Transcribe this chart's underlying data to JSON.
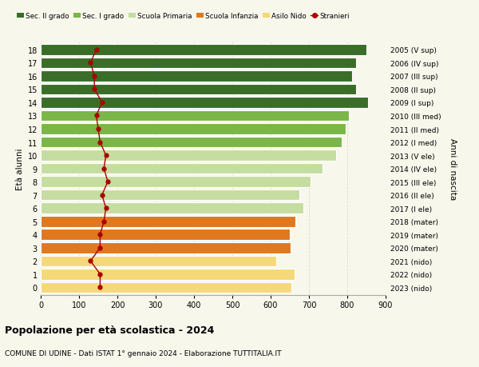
{
  "ages": [
    18,
    17,
    16,
    15,
    14,
    13,
    12,
    11,
    10,
    9,
    8,
    7,
    6,
    5,
    4,
    3,
    2,
    1,
    0
  ],
  "right_labels": [
    "2005 (V sup)",
    "2006 (IV sup)",
    "2007 (III sup)",
    "2008 (II sup)",
    "2009 (I sup)",
    "2010 (III med)",
    "2011 (II med)",
    "2012 (I med)",
    "2013 (V ele)",
    "2014 (IV ele)",
    "2015 (III ele)",
    "2016 (II ele)",
    "2017 (I ele)",
    "2018 (mater)",
    "2019 (mater)",
    "2020 (mater)",
    "2021 (nido)",
    "2022 (nido)",
    "2023 (nido)"
  ],
  "bar_values": [
    851,
    822,
    812,
    822,
    855,
    805,
    795,
    785,
    770,
    735,
    705,
    675,
    685,
    665,
    650,
    653,
    615,
    662,
    655
  ],
  "stranieri": [
    145,
    130,
    140,
    140,
    160,
    145,
    150,
    155,
    170,
    165,
    175,
    160,
    170,
    165,
    155,
    155,
    130,
    155,
    155
  ],
  "bar_colors": [
    "#3a6e28",
    "#3a6e28",
    "#3a6e28",
    "#3a6e28",
    "#3a6e28",
    "#7ab648",
    "#7ab648",
    "#7ab648",
    "#c5dda0",
    "#c5dda0",
    "#c5dda0",
    "#c5dda0",
    "#c5dda0",
    "#e07820",
    "#e07820",
    "#e07820",
    "#f5d878",
    "#f5d878",
    "#f5d878"
  ],
  "legend_labels": [
    "Sec. II grado",
    "Sec. I grado",
    "Scuola Primaria",
    "Scuola Infanzia",
    "Asilo Nido",
    "Stranieri"
  ],
  "legend_colors": [
    "#3a6e28",
    "#7ab648",
    "#c5dda0",
    "#e07820",
    "#f5d878",
    "#aa0000"
  ],
  "title_bold": "Popolazione per età scolastica - 2024",
  "subtitle": "COMUNE DI UDINE - Dati ISTAT 1° gennaio 2024 - Elaborazione TUTTITALIA.IT",
  "ylabel_left": "Età alunni",
  "ylabel_right": "Anni di nascita",
  "xlim": [
    0,
    900
  ],
  "xticks": [
    0,
    100,
    200,
    300,
    400,
    500,
    600,
    700,
    800,
    900
  ],
  "bg_color": "#f7f7ec",
  "bar_height": 0.82,
  "stranieri_color": "#aa0000",
  "grid_color": "#ddddcc"
}
